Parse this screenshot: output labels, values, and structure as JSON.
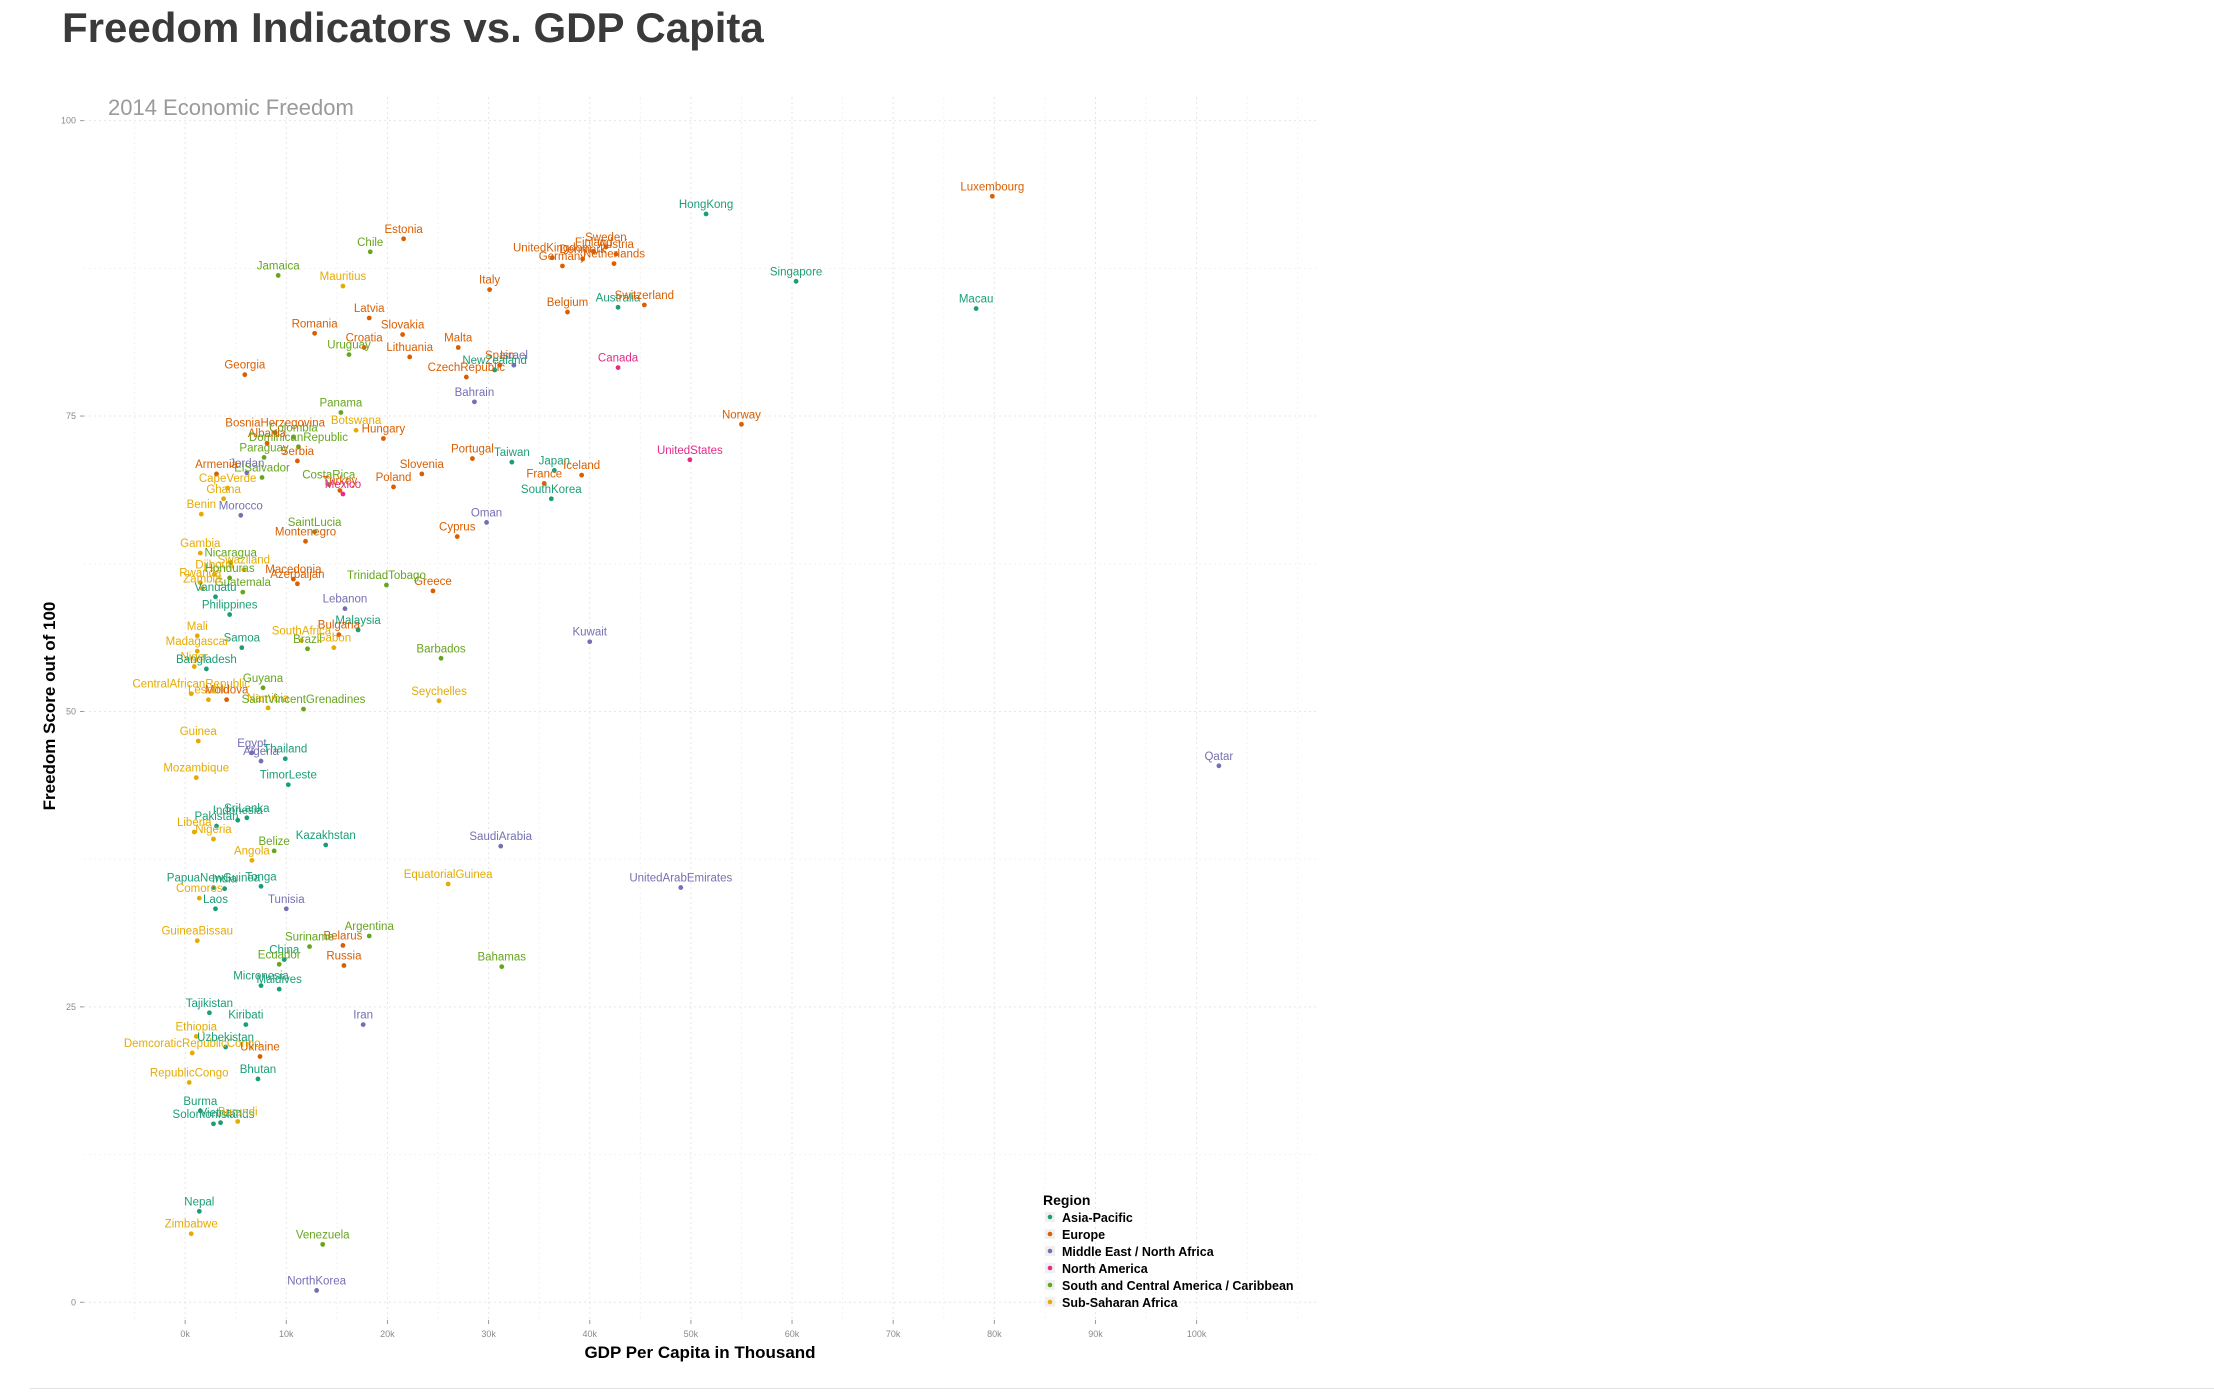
{
  "colors": {
    "Asia-Pacific": "#1b9e77",
    "Europe": "#d95f02",
    "Middle East / North Africa": "#7570b3",
    "North America": "#e7298a",
    "South and Central America / Caribbean": "#66a61e",
    "Sub-Saharan Africa": "#e6ab02"
  },
  "chart_data": {
    "type": "scatter",
    "title": "Freedom Indicators vs. GDP Capita",
    "subtitle": "2014 Economic Freedom",
    "xlabel": "GDP Per Capita in Thousand",
    "ylabel": "Freedom Score out of 100",
    "xlim": [
      -10,
      112
    ],
    "ylim": [
      -1.5,
      102
    ],
    "xticks": [
      0,
      10,
      20,
      30,
      40,
      50,
      60,
      70,
      80,
      90,
      100
    ],
    "xtick_labels": [
      "0k",
      "10k",
      "20k",
      "30k",
      "40k",
      "50k",
      "60k",
      "70k",
      "80k",
      "90k",
      "100k"
    ],
    "yticks": [
      0,
      25,
      50,
      75,
      100
    ],
    "ytick_labels": [
      "0",
      "25",
      "50",
      "75",
      "100"
    ],
    "grid": true,
    "legend_title": "Region",
    "legend": [
      "Asia-Pacific",
      "Europe",
      "Middle East / North Africa",
      "North America",
      "South and Central America / Caribbean",
      "Sub-Saharan Africa"
    ],
    "legend_position": "bottom-right",
    "points": [
      {
        "label": "Luxembourg",
        "region": "Europe",
        "x": 79.8,
        "y": 93.6
      },
      {
        "label": "HongKong",
        "region": "Asia-Pacific",
        "x": 51.5,
        "y": 92.1
      },
      {
        "label": "Sweden",
        "region": "Europe",
        "x": 41.6,
        "y": 89.3
      },
      {
        "label": "Finland",
        "region": "Europe",
        "x": 40.4,
        "y": 88.9
      },
      {
        "label": "Austria",
        "region": "Europe",
        "x": 42.6,
        "y": 88.7
      },
      {
        "label": "Denmark",
        "region": "Europe",
        "x": 39.3,
        "y": 88.3
      },
      {
        "label": "UnitedKingdom",
        "region": "Europe",
        "x": 36.3,
        "y": 88.4
      },
      {
        "label": "Germany",
        "region": "Europe",
        "x": 37.3,
        "y": 87.7
      },
      {
        "label": "Netherlands",
        "region": "Europe",
        "x": 42.4,
        "y": 87.9
      },
      {
        "label": "Estonia",
        "region": "Europe",
        "x": 21.6,
        "y": 90.0
      },
      {
        "label": "Chile",
        "region": "South and Central America / Caribbean",
        "x": 18.3,
        "y": 88.9
      },
      {
        "label": "Singapore",
        "region": "Asia-Pacific",
        "x": 60.4,
        "y": 86.4
      },
      {
        "label": "Macau",
        "region": "Asia-Pacific",
        "x": 78.2,
        "y": 84.1
      },
      {
        "label": "Australia",
        "region": "Asia-Pacific",
        "x": 42.8,
        "y": 84.2
      },
      {
        "label": "Switzerland",
        "region": "Europe",
        "x": 45.4,
        "y": 84.4
      },
      {
        "label": "Belgium",
        "region": "Europe",
        "x": 37.8,
        "y": 83.8
      },
      {
        "label": "Italy",
        "region": "Europe",
        "x": 30.1,
        "y": 85.7
      },
      {
        "label": "Mauritius",
        "region": "Sub-Saharan Africa",
        "x": 15.6,
        "y": 86.0
      },
      {
        "label": "Latvia",
        "region": "Europe",
        "x": 18.2,
        "y": 83.3
      },
      {
        "label": "Jamaica",
        "region": "South and Central America / Caribbean",
        "x": 9.2,
        "y": 86.9
      },
      {
        "label": "Spain",
        "region": "Europe",
        "x": 31.1,
        "y": 79.3
      },
      {
        "label": "Israel",
        "region": "Middle East / North Africa",
        "x": 32.5,
        "y": 79.3
      },
      {
        "label": "Slovakia",
        "region": "Europe",
        "x": 21.5,
        "y": 81.9
      },
      {
        "label": "Croatia",
        "region": "Europe",
        "x": 17.7,
        "y": 80.8
      },
      {
        "label": "Lithuania",
        "region": "Europe",
        "x": 22.2,
        "y": 80.0
      },
      {
        "label": "Malta",
        "region": "Europe",
        "x": 27.0,
        "y": 80.8
      },
      {
        "label": "Romania",
        "region": "Europe",
        "x": 12.8,
        "y": 82.0
      },
      {
        "label": "Uruguay",
        "region": "South and Central America / Caribbean",
        "x": 16.2,
        "y": 80.2
      },
      {
        "label": "Georgia",
        "region": "Europe",
        "x": 5.9,
        "y": 78.5
      },
      {
        "label": "NewZealand",
        "region": "Asia-Pacific",
        "x": 30.6,
        "y": 78.9
      },
      {
        "label": "CzechRepublic",
        "region": "Europe",
        "x": 27.8,
        "y": 78.3
      },
      {
        "label": "Canada",
        "region": "North America",
        "x": 42.8,
        "y": 79.1
      },
      {
        "label": "Bahrain",
        "region": "Middle East / North Africa",
        "x": 28.6,
        "y": 76.2
      },
      {
        "label": "Norway",
        "region": "Europe",
        "x": 55.0,
        "y": 74.3
      },
      {
        "label": "Hungary",
        "region": "Europe",
        "x": 19.6,
        "y": 73.1
      },
      {
        "label": "Botswana",
        "region": "Sub-Saharan Africa",
        "x": 16.9,
        "y": 73.8
      },
      {
        "label": "BosniaHerzegovina",
        "region": "Europe",
        "x": 8.9,
        "y": 73.6
      },
      {
        "label": "Colombia",
        "region": "South and Central America / Caribbean",
        "x": 10.7,
        "y": 73.2
      },
      {
        "label": "Albania",
        "region": "Europe",
        "x": 8.1,
        "y": 72.7
      },
      {
        "label": "DominicanRepublic",
        "region": "South and Central America / Caribbean",
        "x": 11.2,
        "y": 72.4
      },
      {
        "label": "Panama",
        "region": "South and Central America / Caribbean",
        "x": 15.4,
        "y": 75.3
      },
      {
        "label": "Paraguay",
        "region": "South and Central America / Caribbean",
        "x": 7.8,
        "y": 71.5
      },
      {
        "label": "Serbia",
        "region": "Europe",
        "x": 11.1,
        "y": 71.2
      },
      {
        "label": "Taiwan",
        "region": "Asia-Pacific",
        "x": 32.3,
        "y": 71.1
      },
      {
        "label": "Portugal",
        "region": "Europe",
        "x": 28.4,
        "y": 71.4
      },
      {
        "label": "Slovenia",
        "region": "Europe",
        "x": 23.4,
        "y": 70.1
      },
      {
        "label": "Poland",
        "region": "Europe",
        "x": 20.6,
        "y": 69.0
      },
      {
        "label": "France",
        "region": "Europe",
        "x": 35.5,
        "y": 69.3
      },
      {
        "label": "Japan",
        "region": "Asia-Pacific",
        "x": 36.5,
        "y": 70.4
      },
      {
        "label": "SouthKorea",
        "region": "Asia-Pacific",
        "x": 36.2,
        "y": 68.0
      },
      {
        "label": "Iceland",
        "region": "Europe",
        "x": 39.2,
        "y": 70.0
      },
      {
        "label": "UnitedStates",
        "region": "North America",
        "x": 49.9,
        "y": 71.3
      },
      {
        "label": "Jordan",
        "region": "Middle East / North Africa",
        "x": 6.1,
        "y": 70.2
      },
      {
        "label": "ElSalvador",
        "region": "South and Central America / Caribbean",
        "x": 7.6,
        "y": 69.8
      },
      {
        "label": "CostaRica",
        "region": "South and Central America / Caribbean",
        "x": 14.2,
        "y": 69.2
      },
      {
        "label": "Turkey",
        "region": "Europe",
        "x": 15.3,
        "y": 68.7
      },
      {
        "label": "Mexico",
        "region": "North America",
        "x": 15.6,
        "y": 68.4
      },
      {
        "label": "Armenia",
        "region": "Europe",
        "x": 3.1,
        "y": 70.1
      },
      {
        "label": "CapeVerde",
        "region": "Sub-Saharan Africa",
        "x": 4.2,
        "y": 68.9
      },
      {
        "label": "Ghana",
        "region": "Sub-Saharan Africa",
        "x": 3.8,
        "y": 68.0
      },
      {
        "label": "Benin",
        "region": "Sub-Saharan Africa",
        "x": 1.6,
        "y": 66.7
      },
      {
        "label": "Morocco",
        "region": "Middle East / North Africa",
        "x": 5.5,
        "y": 66.6
      },
      {
        "label": "Gambia",
        "region": "Sub-Saharan Africa",
        "x": 1.5,
        "y": 63.4
      },
      {
        "label": "Nicaragua",
        "region": "South and Central America / Caribbean",
        "x": 4.5,
        "y": 62.6
      },
      {
        "label": "SaintLucia",
        "region": "South and Central America / Caribbean",
        "x": 12.8,
        "y": 65.2
      },
      {
        "label": "Montenegro",
        "region": "Europe",
        "x": 11.9,
        "y": 64.4
      },
      {
        "label": "Swaziland",
        "region": "Sub-Saharan Africa",
        "x": 5.8,
        "y": 62.0
      },
      {
        "label": "Djibouti",
        "region": "Sub-Saharan Africa",
        "x": 2.9,
        "y": 61.6
      },
      {
        "label": "Rwanda",
        "region": "Sub-Saharan Africa",
        "x": 1.5,
        "y": 60.9
      },
      {
        "label": "Guatemala",
        "region": "South and Central America / Caribbean",
        "x": 5.7,
        "y": 60.1
      },
      {
        "label": "Oman",
        "region": "Middle East / North Africa",
        "x": 29.8,
        "y": 66.0
      },
      {
        "label": "Cyprus",
        "region": "Europe",
        "x": 26.9,
        "y": 64.8
      },
      {
        "label": "Greece",
        "region": "Europe",
        "x": 24.5,
        "y": 60.2
      },
      {
        "label": "TrinidadTobago",
        "region": "South and Central America / Caribbean",
        "x": 19.9,
        "y": 60.7
      },
      {
        "label": "Lebanon",
        "region": "Middle East / North Africa",
        "x": 15.8,
        "y": 58.7
      },
      {
        "label": "Honduras",
        "region": "South and Central America / Caribbean",
        "x": 4.4,
        "y": 61.3
      },
      {
        "label": "Macedonia",
        "region": "Europe",
        "x": 10.7,
        "y": 61.2
      },
      {
        "label": "Azerbaijan",
        "region": "Europe",
        "x": 11.1,
        "y": 60.8
      },
      {
        "label": "Vanuatu",
        "region": "Asia-Pacific",
        "x": 3.0,
        "y": 59.7
      },
      {
        "label": "Samoa",
        "region": "Asia-Pacific",
        "x": 5.6,
        "y": 55.4
      },
      {
        "label": "Philippines",
        "region": "Asia-Pacific",
        "x": 4.4,
        "y": 58.2
      },
      {
        "label": "Zambia",
        "region": "Sub-Saharan Africa",
        "x": 1.7,
        "y": 60.4
      },
      {
        "label": "Kuwait",
        "region": "Middle East / North Africa",
        "x": 40.0,
        "y": 55.9
      },
      {
        "label": "Barbados",
        "region": "South and Central America / Caribbean",
        "x": 25.3,
        "y": 54.5
      },
      {
        "label": "Bulgaria",
        "region": "Europe",
        "x": 15.2,
        "y": 56.5
      },
      {
        "label": "Malaysia",
        "region": "Asia-Pacific",
        "x": 17.1,
        "y": 56.9
      },
      {
        "label": "Brazil",
        "region": "South and Central America / Caribbean",
        "x": 12.1,
        "y": 55.3
      },
      {
        "label": "Gabon",
        "region": "Sub-Saharan Africa",
        "x": 14.7,
        "y": 55.4
      },
      {
        "label": "SouthAfrica",
        "region": "Sub-Saharan Africa",
        "x": 11.5,
        "y": 56.0
      },
      {
        "label": "Mali",
        "region": "Sub-Saharan Africa",
        "x": 1.2,
        "y": 56.4
      },
      {
        "label": "Madagascar",
        "region": "Sub-Saharan Africa",
        "x": 1.2,
        "y": 55.1
      },
      {
        "label": "Niger",
        "region": "Sub-Saharan Africa",
        "x": 0.9,
        "y": 53.8
      },
      {
        "label": "Bangladesh",
        "region": "Asia-Pacific",
        "x": 2.1,
        "y": 53.6
      },
      {
        "label": "Seychelles",
        "region": "Sub-Saharan Africa",
        "x": 25.1,
        "y": 50.9
      },
      {
        "label": "Lesotho",
        "region": "Sub-Saharan Africa",
        "x": 2.3,
        "y": 51.0
      },
      {
        "label": "CentralAfricanRepublic",
        "region": "Sub-Saharan Africa",
        "x": 0.6,
        "y": 51.5
      },
      {
        "label": "Guyana",
        "region": "South and Central America / Caribbean",
        "x": 7.7,
        "y": 52.0
      },
      {
        "label": "Moldova",
        "region": "Europe",
        "x": 4.1,
        "y": 51.0
      },
      {
        "label": "Namibia",
        "region": "Sub-Saharan Africa",
        "x": 8.2,
        "y": 50.3
      },
      {
        "label": "SaintVincentGrenadines",
        "region": "South and Central America / Caribbean",
        "x": 11.7,
        "y": 50.2
      },
      {
        "label": "Mozambique",
        "region": "Sub-Saharan Africa",
        "x": 1.1,
        "y": 44.4
      },
      {
        "label": "Egypt",
        "region": "Middle East / North Africa",
        "x": 6.6,
        "y": 46.5
      },
      {
        "label": "Algeria",
        "region": "Middle East / North Africa",
        "x": 7.5,
        "y": 45.8
      },
      {
        "label": "Guinea",
        "region": "Sub-Saharan Africa",
        "x": 1.3,
        "y": 47.5
      },
      {
        "label": "Thailand",
        "region": "Asia-Pacific",
        "x": 9.9,
        "y": 46.0
      },
      {
        "label": "TimorLeste",
        "region": "Asia-Pacific",
        "x": 10.2,
        "y": 43.8
      },
      {
        "label": "Qatar",
        "region": "Middle East / North Africa",
        "x": 102.2,
        "y": 45.4
      },
      {
        "label": "SaudiArabia",
        "region": "Middle East / North Africa",
        "x": 31.2,
        "y": 38.6
      },
      {
        "label": "Kazakhstan",
        "region": "Asia-Pacific",
        "x": 13.9,
        "y": 38.7
      },
      {
        "label": "SriLanka",
        "region": "Asia-Pacific",
        "x": 6.1,
        "y": 41.0
      },
      {
        "label": "Indonesia",
        "region": "Asia-Pacific",
        "x": 5.2,
        "y": 40.8
      },
      {
        "label": "Belize",
        "region": "South and Central America / Caribbean",
        "x": 8.8,
        "y": 38.2
      },
      {
        "label": "Pakistan",
        "region": "Asia-Pacific",
        "x": 3.1,
        "y": 40.3
      },
      {
        "label": "Liberia",
        "region": "Sub-Saharan Africa",
        "x": 0.9,
        "y": 39.8
      },
      {
        "label": "Nigeria",
        "region": "Sub-Saharan Africa",
        "x": 2.8,
        "y": 39.2
      },
      {
        "label": "Angola",
        "region": "Sub-Saharan Africa",
        "x": 6.6,
        "y": 37.4
      },
      {
        "label": "EquatorialGuinea",
        "region": "Sub-Saharan Africa",
        "x": 26.0,
        "y": 35.4
      },
      {
        "label": "UnitedArabEmirates",
        "region": "Middle East / North Africa",
        "x": 49.0,
        "y": 35.1
      },
      {
        "label": "PapuaNewGuinea",
        "region": "Asia-Pacific",
        "x": 2.8,
        "y": 35.1
      },
      {
        "label": "India",
        "region": "Asia-Pacific",
        "x": 3.9,
        "y": 35.0
      },
      {
        "label": "Tonga",
        "region": "Asia-Pacific",
        "x": 7.5,
        "y": 35.2
      },
      {
        "label": "Laos",
        "region": "Asia-Pacific",
        "x": 3.0,
        "y": 33.3
      },
      {
        "label": "Comoros",
        "region": "Sub-Saharan Africa",
        "x": 1.4,
        "y": 34.2
      },
      {
        "label": "Tunisia",
        "region": "Middle East / North Africa",
        "x": 10.0,
        "y": 33.3
      },
      {
        "label": "Argentina",
        "region": "South and Central America / Caribbean",
        "x": 18.2,
        "y": 31.0
      },
      {
        "label": "Belarus",
        "region": "Europe",
        "x": 15.6,
        "y": 30.2
      },
      {
        "label": "GuineaBissau",
        "region": "Sub-Saharan Africa",
        "x": 1.2,
        "y": 30.6
      },
      {
        "label": "China",
        "region": "Asia-Pacific",
        "x": 9.8,
        "y": 29.0
      },
      {
        "label": "Suriname",
        "region": "South and Central America / Caribbean",
        "x": 12.3,
        "y": 30.1
      },
      {
        "label": "Ecuador",
        "region": "South and Central America / Caribbean",
        "x": 9.3,
        "y": 28.6
      },
      {
        "label": "Bahamas",
        "region": "South and Central America / Caribbean",
        "x": 31.3,
        "y": 28.4
      },
      {
        "label": "Russia",
        "region": "Europe",
        "x": 15.7,
        "y": 28.5
      },
      {
        "label": "Micronesia",
        "region": "Asia-Pacific",
        "x": 7.5,
        "y": 26.8
      },
      {
        "label": "Maldives",
        "region": "Asia-Pacific",
        "x": 9.3,
        "y": 26.5
      },
      {
        "label": "Tajikistan",
        "region": "Asia-Pacific",
        "x": 2.4,
        "y": 24.5
      },
      {
        "label": "Kiribati",
        "region": "Asia-Pacific",
        "x": 6.0,
        "y": 23.5
      },
      {
        "label": "Ethiopia",
        "region": "Sub-Saharan Africa",
        "x": 1.1,
        "y": 22.5
      },
      {
        "label": "DemcoraticRepublicCongo",
        "region": "Sub-Saharan Africa",
        "x": 0.7,
        "y": 21.1
      },
      {
        "label": "Uzbekistan",
        "region": "Asia-Pacific",
        "x": 4.0,
        "y": 21.6
      },
      {
        "label": "Bhutan",
        "region": "Asia-Pacific",
        "x": 7.2,
        "y": 18.9
      },
      {
        "label": "Ukraine",
        "region": "Europe",
        "x": 7.4,
        "y": 20.8
      },
      {
        "label": "Iran",
        "region": "Middle East / North Africa",
        "x": 17.6,
        "y": 23.5
      },
      {
        "label": "RepublicCongo",
        "region": "Sub-Saharan Africa",
        "x": 0.4,
        "y": 18.6
      },
      {
        "label": "Burma",
        "region": "Asia-Pacific",
        "x": 1.5,
        "y": 16.2
      },
      {
        "label": "Vietnam",
        "region": "Asia-Pacific",
        "x": 3.5,
        "y": 15.2
      },
      {
        "label": "SolomonIslands",
        "region": "Asia-Pacific",
        "x": 2.8,
        "y": 15.1
      },
      {
        "label": "Burundi",
        "region": "Sub-Saharan Africa",
        "x": 5.2,
        "y": 15.3
      },
      {
        "label": "Zimbabwe",
        "region": "Sub-Saharan Africa",
        "x": 0.6,
        "y": 5.8
      },
      {
        "label": "Nepal",
        "region": "Asia-Pacific",
        "x": 1.4,
        "y": 7.7
      },
      {
        "label": "Venezuela",
        "region": "South and Central America / Caribbean",
        "x": 13.6,
        "y": 4.9
      },
      {
        "label": "NorthKorea",
        "region": "Middle East / North Africa",
        "x": 13.0,
        "y": 1.0
      }
    ]
  }
}
